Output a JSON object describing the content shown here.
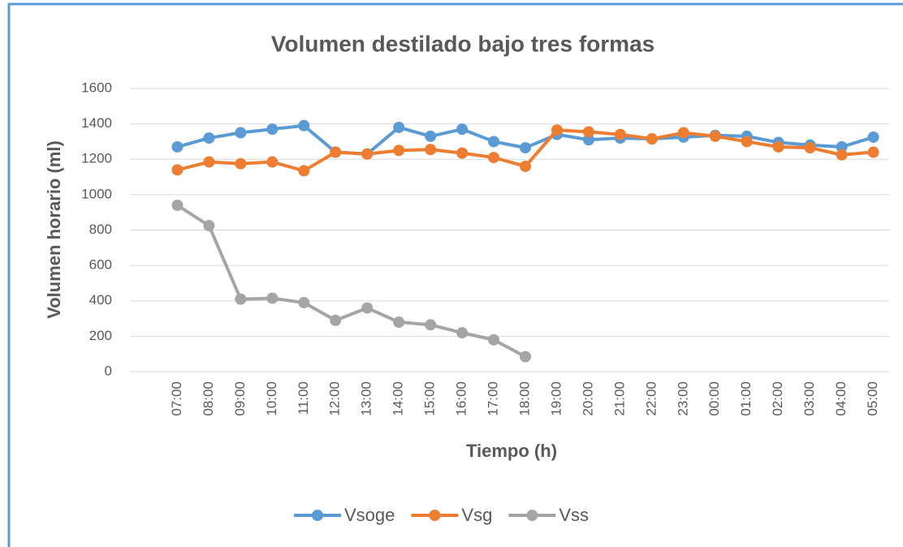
{
  "chart_data": {
    "type": "line",
    "title": "Volumen destilado bajo tres formas",
    "x_label": "Tiempo (h)",
    "y_label": "Volumen horario (ml)",
    "categories": [
      null,
      "07:00",
      "08:00",
      "09:00",
      "10:00",
      "11:00",
      "12:00",
      "13:00",
      "14:00",
      "15:00",
      "16:00",
      "17:00",
      "18:00",
      "19:00",
      "20:00",
      "21:00",
      "22:00",
      "23:00",
      "00:00",
      "01:00",
      "02:00",
      "03:00",
      "04:00",
      "05:00"
    ],
    "series": [
      {
        "name": "Vsoge",
        "color": "#5b9bd5",
        "values": [
          null,
          1270,
          1320,
          1350,
          1370,
          1390,
          1240,
          1230,
          1380,
          1330,
          1370,
          1300,
          1265,
          1340,
          1310,
          1320,
          1315,
          1325,
          1335,
          1330,
          1295,
          1280,
          1270,
          1325
        ]
      },
      {
        "name": "Vsg",
        "color": "#ed7d31",
        "values": [
          null,
          1140,
          1185,
          1175,
          1185,
          1135,
          1240,
          1230,
          1250,
          1255,
          1235,
          1210,
          1160,
          1365,
          1355,
          1340,
          1315,
          1350,
          1330,
          1300,
          1270,
          1265,
          1225,
          1240
        ]
      },
      {
        "name": "Vss",
        "color": "#a5a5a5",
        "values": [
          null,
          940,
          825,
          410,
          415,
          390,
          290,
          360,
          280,
          265,
          220,
          180,
          85,
          null,
          null,
          null,
          null,
          null,
          null,
          null,
          null,
          null,
          null,
          null
        ]
      }
    ],
    "ylim": [
      0,
      1600
    ],
    "yticks": [
      0,
      200,
      400,
      600,
      800,
      1000,
      1200,
      1400,
      1600
    ],
    "grid": true,
    "legend": "bottom"
  }
}
